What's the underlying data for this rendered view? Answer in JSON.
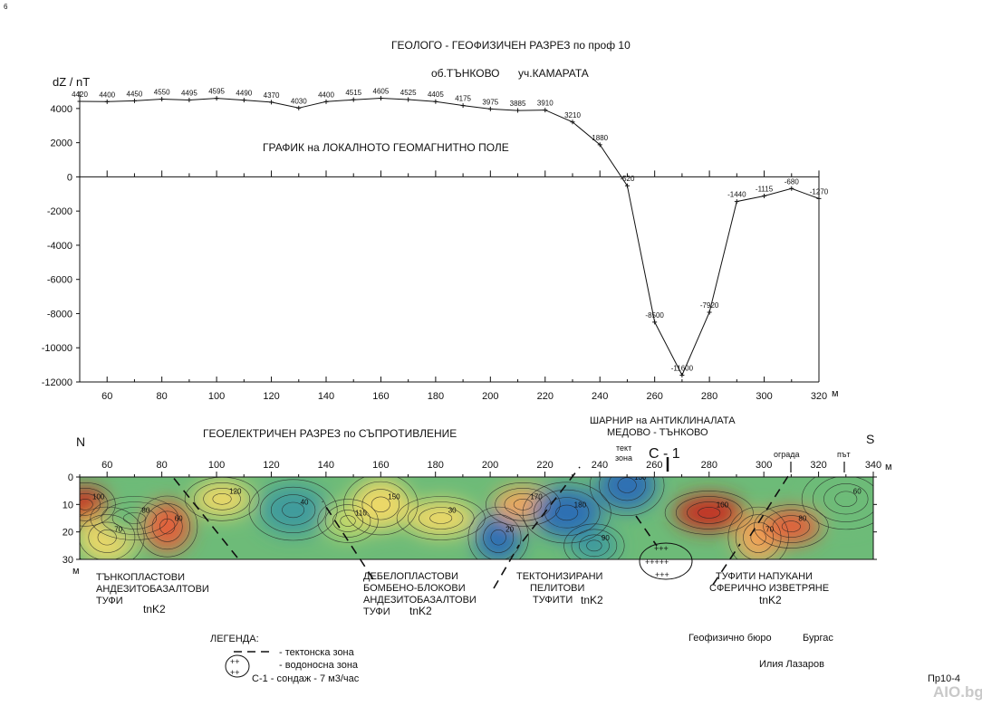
{
  "header": {
    "corner_mark": "6",
    "title": "ГЕОЛОГО - ГЕОФИЗИЧЕН  РАЗРЕЗ  по проф 10",
    "subtitle_area": "об.ТЪНКОВО",
    "subtitle_locality": "уч.КАМАРАТА"
  },
  "chart_data": [
    {
      "type": "line",
      "title": "ГРАФИК на ЛОКАЛНОТО ГЕОМАГНИТНО ПОЛЕ",
      "ylabel": "dZ / nT",
      "xlabel": "м",
      "xlim": [
        50,
        320
      ],
      "ylim": [
        -12000,
        5000
      ],
      "x_ticks": [
        60,
        80,
        100,
        120,
        140,
        160,
        180,
        200,
        220,
        240,
        260,
        280,
        300,
        320
      ],
      "y_ticks": [
        4000,
        2000,
        0,
        -2000,
        -4000,
        -6000,
        -8000,
        -10000,
        -12000
      ],
      "grid": false,
      "x": [
        50,
        60,
        70,
        80,
        90,
        100,
        110,
        120,
        130,
        140,
        150,
        160,
        170,
        180,
        190,
        200,
        210,
        220,
        230,
        240,
        250,
        260,
        270,
        280,
        290,
        300,
        310,
        320
      ],
      "y": [
        4420,
        4400,
        4450,
        4550,
        4495,
        4595,
        4490,
        4370,
        4030,
        4400,
        4515,
        4605,
        4525,
        4405,
        4175,
        3975,
        3885,
        3910,
        3210,
        1880,
        -520,
        -8500,
        -11600,
        -7920,
        -1440,
        -1115,
        -680,
        -1270
      ],
      "point_labels": [
        "4420",
        "4400",
        "4450",
        "4550",
        "4495",
        "4595",
        "4490",
        "4370",
        "4030",
        "4400",
        "4515",
        "4605",
        "4525",
        "4405",
        "4175",
        "3975",
        "3885",
        "3910",
        "3210",
        "1880",
        "-520",
        "-8500",
        "-11600",
        "-7920",
        "-1440",
        "-1115",
        "-680",
        "-1270"
      ]
    },
    {
      "type": "heatmap",
      "title": "ГЕОЕЛЕКТРИЧЕН  РАЗРЕЗ  по СЪПРОТИВЛЕНИЕ",
      "xlabel": "м",
      "ylabel": "м",
      "xlim": [
        50,
        340
      ],
      "ylim": [
        0,
        30
      ],
      "x_ticks": [
        60,
        80,
        100,
        120,
        140,
        160,
        180,
        200,
        220,
        240,
        260,
        280,
        300,
        320,
        340
      ],
      "y_ticks": [
        0,
        10,
        20,
        30
      ],
      "color_scale": [
        "#2f6fb3",
        "#3f9b9c",
        "#6dbb78",
        "#bfd86a",
        "#ecd867",
        "#f0a85a",
        "#e2603a",
        "#c53324"
      ],
      "value_range": [
        20,
        180
      ],
      "anomalies": [
        {
          "x": 52,
          "y": 10,
          "value": 180
        },
        {
          "x": 60,
          "y": 22,
          "value": 100
        },
        {
          "x": 70,
          "y": 15,
          "value": 70
        },
        {
          "x": 82,
          "y": 18,
          "value": 150
        },
        {
          "x": 102,
          "y": 8,
          "value": 100
        },
        {
          "x": 128,
          "y": 12,
          "value": 40
        },
        {
          "x": 148,
          "y": 16,
          "value": 90
        },
        {
          "x": 160,
          "y": 10,
          "value": 100
        },
        {
          "x": 182,
          "y": 15,
          "value": 120
        },
        {
          "x": 203,
          "y": 22,
          "value": 30
        },
        {
          "x": 212,
          "y": 10,
          "value": 140
        },
        {
          "x": 228,
          "y": 13,
          "value": 20
        },
        {
          "x": 238,
          "y": 25,
          "value": 40
        },
        {
          "x": 250,
          "y": 3,
          "value": 30
        },
        {
          "x": 280,
          "y": 13,
          "value": 180
        },
        {
          "x": 298,
          "y": 22,
          "value": 130
        },
        {
          "x": 310,
          "y": 18,
          "value": 150
        },
        {
          "x": 330,
          "y": 8,
          "value": 70
        }
      ],
      "contour_labels": [
        "100",
        "70",
        "80",
        "60",
        "120",
        "40",
        "110",
        "150",
        "30",
        "20",
        "170",
        "180",
        "90",
        "130"
      ]
    }
  ],
  "section": {
    "north": "N",
    "south": "S",
    "hinge_line1": "ШАРНИР на АНТИКЛИНАЛАТА",
    "hinge_line2": "МЕДОВО - ТЪНКОВО",
    "tect_zone_1": "тект",
    "tect_zone_2": "зона",
    "borehole": "С - 1",
    "fence": "ограда",
    "road": "път",
    "plus_1": "+++",
    "plus_2": "+++++",
    "plus_3": "+++"
  },
  "units": [
    {
      "lines": [
        "ТЪНКОПЛАСТОВИ",
        "АНДЕЗИТОБАЗАЛТОВИ",
        "ТУФИ"
      ],
      "code": "tnK2"
    },
    {
      "lines": [
        "ДЕБЕЛОПЛАСТОВИ",
        "БОМБЕНО-БЛОКОВИ",
        "АНДЕЗИТОБАЗАЛТОВИ",
        "ТУФИ"
      ],
      "code": "tnK2"
    },
    {
      "lines": [
        "ТЕКТОНИЗИРАНИ",
        "ПЕЛИТОВИ",
        "ТУФИТИ"
      ],
      "code": "tnK2"
    },
    {
      "lines": [
        "ТУФИТИ  НАПУКАНИ",
        "СФЕРИЧНО ИЗВЕТРЯНЕ"
      ],
      "code": "tnK2"
    }
  ],
  "legend": {
    "title": "ЛЕГЕНДА:",
    "fault": "-  тектонска зона",
    "aquifer": "-  водоносна зона",
    "aquifer_symbol": "++",
    "borehole": "С-1  -  сондаж  -  7 м3/час"
  },
  "footer": {
    "bureau": "Геофизично бюро",
    "city": "Бургас",
    "author": "Илия  Лазаров",
    "sheet": "Пр10-4",
    "watermark": "AIO.bg"
  },
  "colors": {
    "line": "#111111",
    "deep_blue": "#2f6fb3",
    "hot_red": "#c53324"
  }
}
